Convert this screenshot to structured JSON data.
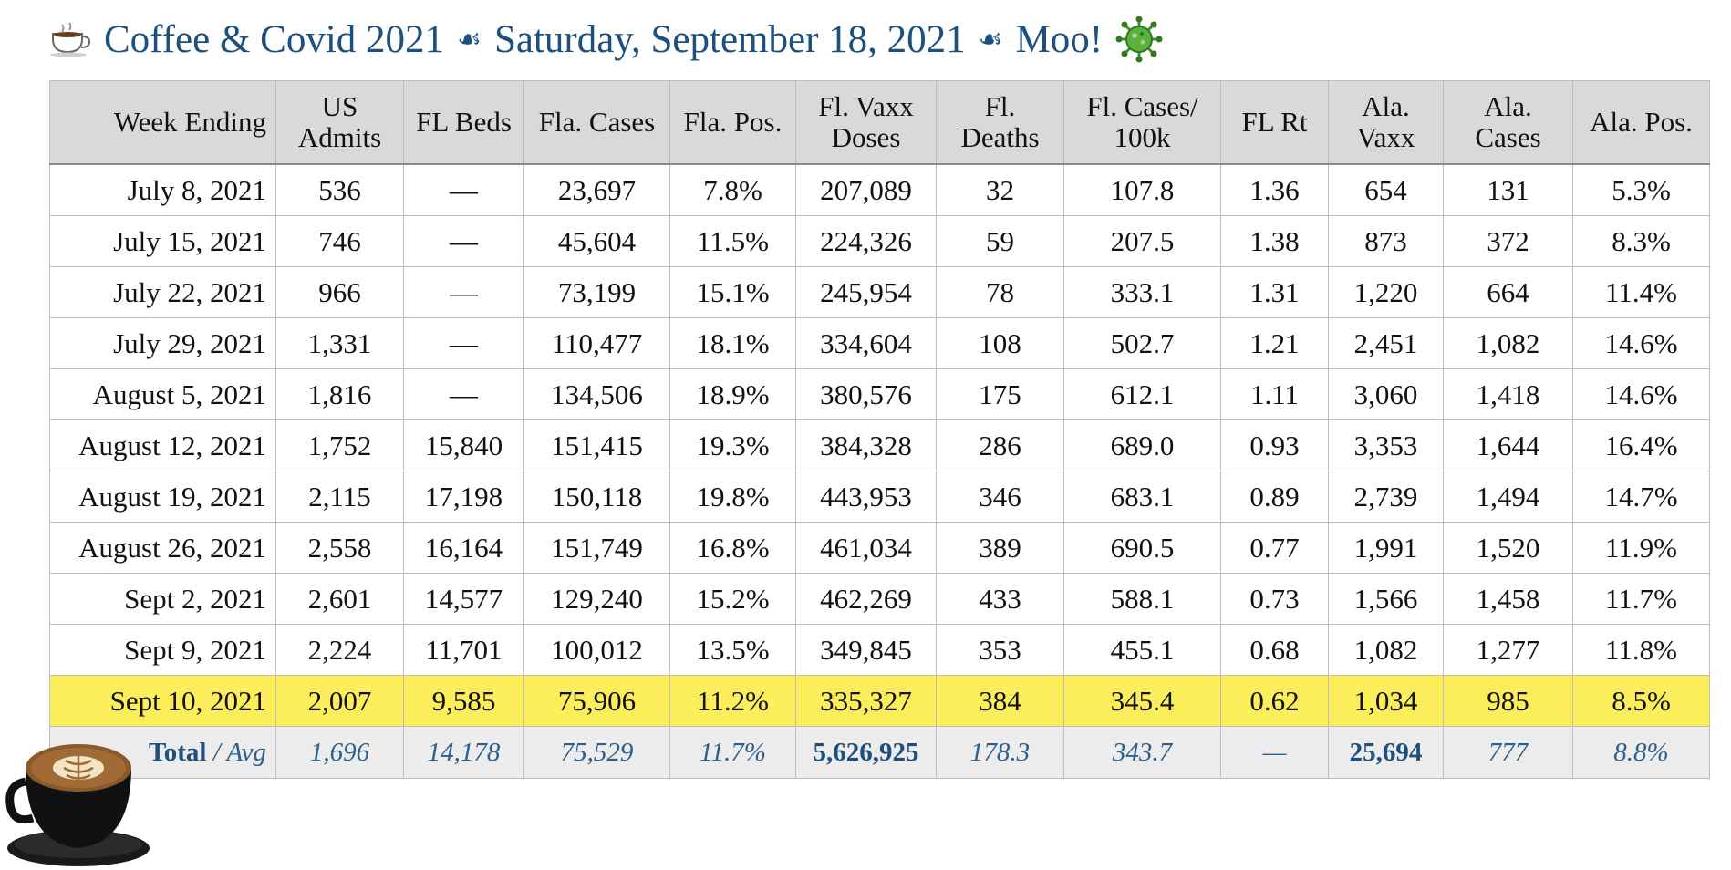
{
  "header": {
    "cup_icon": "coffee-cup-icon",
    "title": "Coffee & Covid 2021",
    "separator": "☙",
    "date": "Saturday, September 18, 2021",
    "tagline": "Moo!",
    "virus_icon": "virus-icon"
  },
  "table": {
    "columns": [
      "Week Ending",
      "US Admits",
      "FL Beds",
      "Fla. Cases",
      "Fla. Pos.",
      "Fl. Vaxx Doses",
      "Fl. Deaths",
      "Fl. Cases/ 100k",
      "FL Rt",
      "Ala. Vaxx",
      "Ala. Cases",
      "Ala. Pos."
    ],
    "rows": [
      [
        "July 8, 2021",
        "536",
        "—",
        "23,697",
        "7.8%",
        "207,089",
        "32",
        "107.8",
        "1.36",
        "654",
        "131",
        "5.3%"
      ],
      [
        "July 15, 2021",
        "746",
        "—",
        "45,604",
        "11.5%",
        "224,326",
        "59",
        "207.5",
        "1.38",
        "873",
        "372",
        "8.3%"
      ],
      [
        "July 22, 2021",
        "966",
        "—",
        "73,199",
        "15.1%",
        "245,954",
        "78",
        "333.1",
        "1.31",
        "1,220",
        "664",
        "11.4%"
      ],
      [
        "July 29, 2021",
        "1,331",
        "—",
        "110,477",
        "18.1%",
        "334,604",
        "108",
        "502.7",
        "1.21",
        "2,451",
        "1,082",
        "14.6%"
      ],
      [
        "August 5, 2021",
        "1,816",
        "—",
        "134,506",
        "18.9%",
        "380,576",
        "175",
        "612.1",
        "1.11",
        "3,060",
        "1,418",
        "14.6%"
      ],
      [
        "August 12, 2021",
        "1,752",
        "15,840",
        "151,415",
        "19.3%",
        "384,328",
        "286",
        "689.0",
        "0.93",
        "3,353",
        "1,644",
        "16.4%"
      ],
      [
        "August 19, 2021",
        "2,115",
        "17,198",
        "150,118",
        "19.8%",
        "443,953",
        "346",
        "683.1",
        "0.89",
        "2,739",
        "1,494",
        "14.7%"
      ],
      [
        "August 26, 2021",
        "2,558",
        "16,164",
        "151,749",
        "16.8%",
        "461,034",
        "389",
        "690.5",
        "0.77",
        "1,991",
        "1,520",
        "11.9%"
      ],
      [
        "Sept 2, 2021",
        "2,601",
        "14,577",
        "129,240",
        "15.2%",
        "462,269",
        "433",
        "588.1",
        "0.73",
        "1,566",
        "1,458",
        "11.7%"
      ],
      [
        "Sept 9, 2021",
        "2,224",
        "11,701",
        "100,012",
        "13.5%",
        "349,845",
        "353",
        "455.1",
        "0.68",
        "1,082",
        "1,277",
        "11.8%"
      ],
      [
        "Sept 10, 2021",
        "2,007",
        "9,585",
        "75,906",
        "11.2%",
        "335,327",
        "384",
        "345.4",
        "0.62",
        "1,034",
        "985",
        "8.5%"
      ]
    ],
    "highlight_row_color": "#fbee5a",
    "footer": {
      "total_label": "Total",
      "slash": " / ",
      "avg_label": "Avg",
      "values": [
        "1,696",
        "14,178",
        "75,529",
        "11.7%",
        "5,626,925",
        "178.3",
        "343.7",
        "—",
        "25,694",
        "777",
        "8.8%"
      ]
    }
  },
  "latte_icon": "latte-cup-icon",
  "colors": {
    "title": "#1d4f7f",
    "header_bg": "#d9d9d9",
    "footer_bg": "#ececec",
    "highlight": "#fbee5a"
  }
}
